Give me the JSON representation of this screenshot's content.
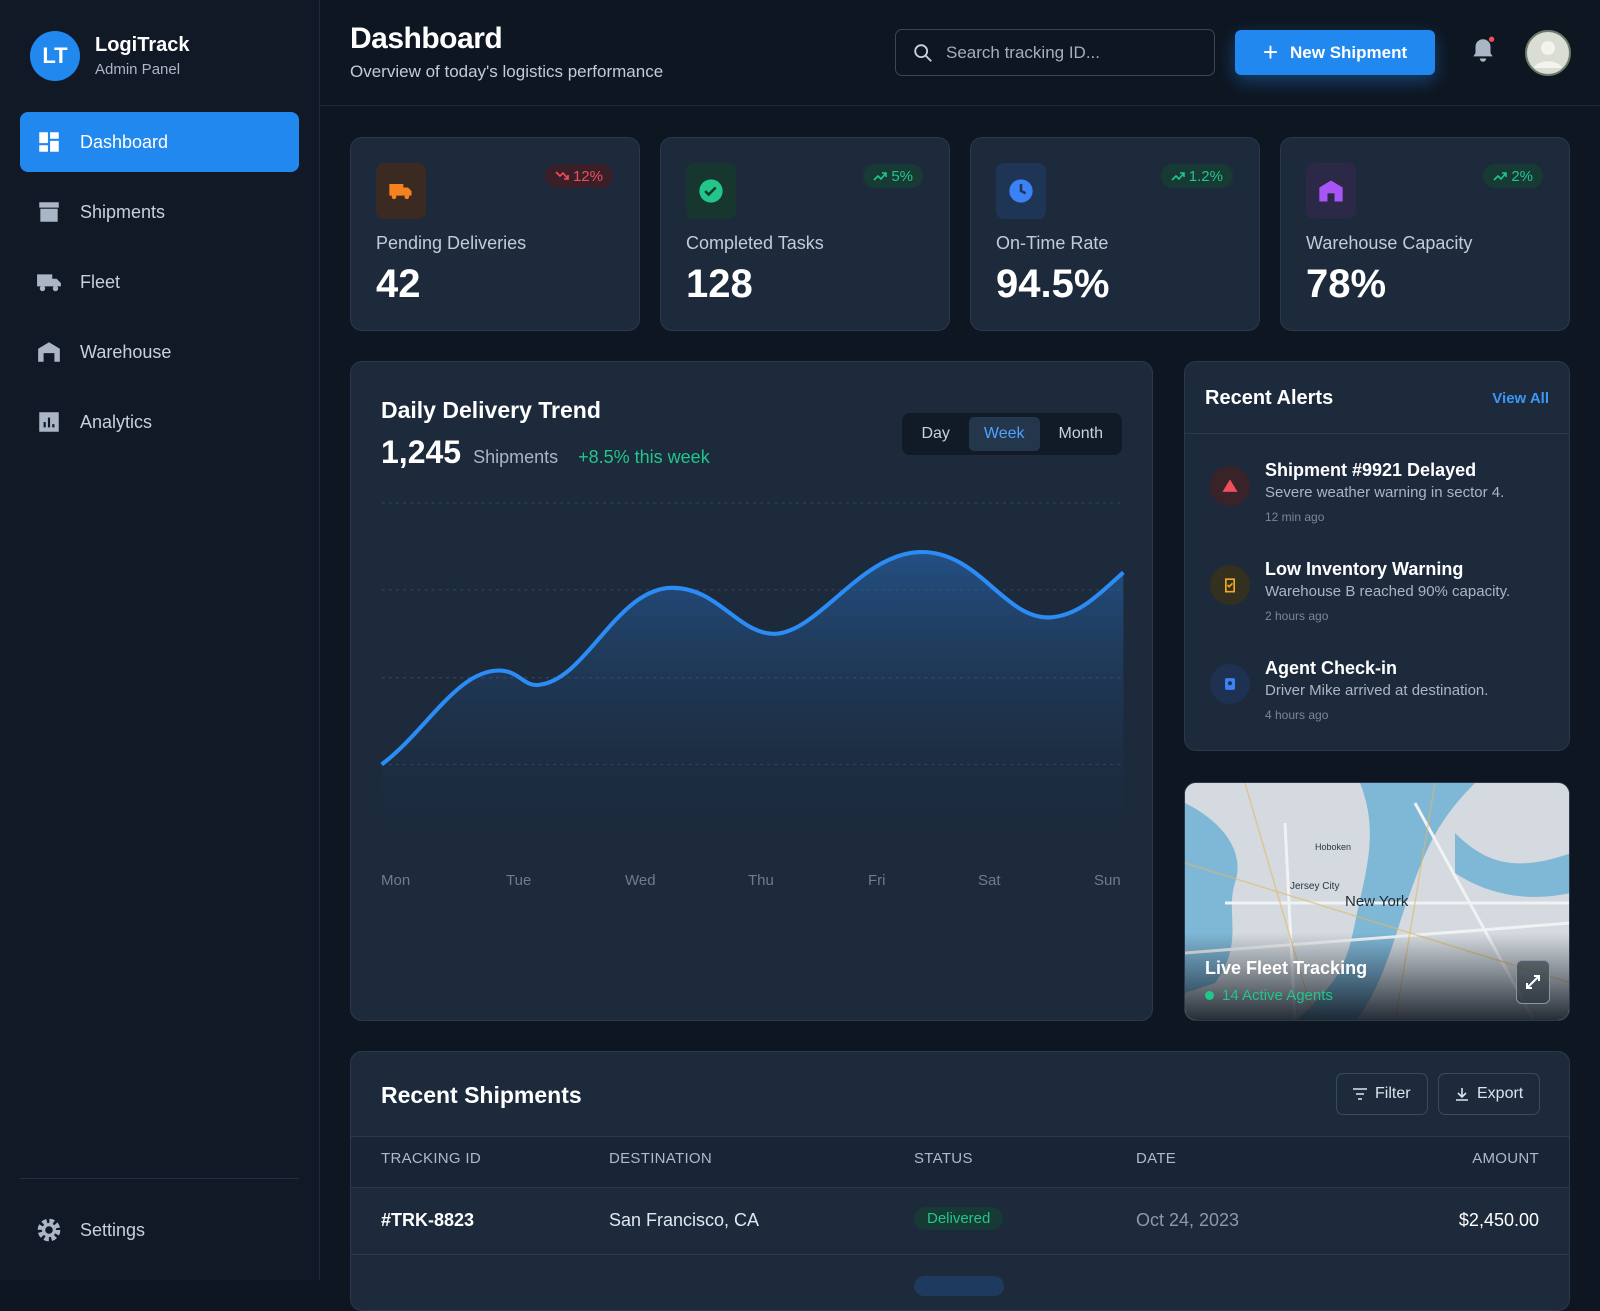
{
  "sidebar": {
    "initials": "LT",
    "name": "LogiTrack",
    "role": "Admin Panel",
    "nav": [
      "Dashboard",
      "Shipments",
      "Fleet",
      "Warehouse",
      "Analytics"
    ],
    "settings": "Settings"
  },
  "header": {
    "title": "Dashboard",
    "subtitle": "Overview of today's logistics performance",
    "search": "Search tracking ID...",
    "new_button": "New Shipment"
  },
  "stats": [
    {
      "label": "Pending Deliveries",
      "value": "42",
      "change": "12%"
    },
    {
      "label": "Completed Tasks",
      "value": "128",
      "change": "5%"
    },
    {
      "label": "On-Time Rate",
      "value": "94.5%",
      "change": "1.2%"
    },
    {
      "label": "Warehouse Capacity",
      "value": "78%",
      "change": "2%"
    }
  ],
  "trend": {
    "title": "Daily Delivery Trend",
    "total": "1,245",
    "unit": "Shipments",
    "change": "+8.5% this week",
    "ranges": [
      "Day",
      "Week",
      "Month"
    ],
    "days": [
      "Mon",
      "Tue",
      "Wed",
      "Thu",
      "Fri",
      "Sat",
      "Sun"
    ]
  },
  "alerts": {
    "title": "Recent Alerts",
    "view_all": "View All",
    "items": [
      {
        "title": "Shipment #9921 Delayed",
        "text": "Severe weather warning in sector 4.",
        "time": "12 min ago"
      },
      {
        "title": "Low Inventory Warning",
        "text": "Warehouse B reached 90% capacity.",
        "time": "2 hours ago"
      },
      {
        "title": "Agent Check-in",
        "text": "Driver Mike arrived at destination.",
        "time": "4 hours ago"
      }
    ]
  },
  "map": {
    "title": "Live Fleet Tracking",
    "agents": "14 Active Agents",
    "places": [
      "New York",
      "Jersey City",
      "Hoboken"
    ]
  },
  "shipments": {
    "title": "Recent Shipments",
    "filter": "Filter",
    "export": "Export",
    "columns": [
      "TRACKING ID",
      "DESTINATION",
      "STATUS",
      "DATE",
      "AMOUNT"
    ],
    "rows": [
      [
        "#TRK-8823",
        "San Francisco, CA",
        "Delivered",
        "Oct 24, 2023",
        "$2,450.00"
      ]
    ]
  }
}
